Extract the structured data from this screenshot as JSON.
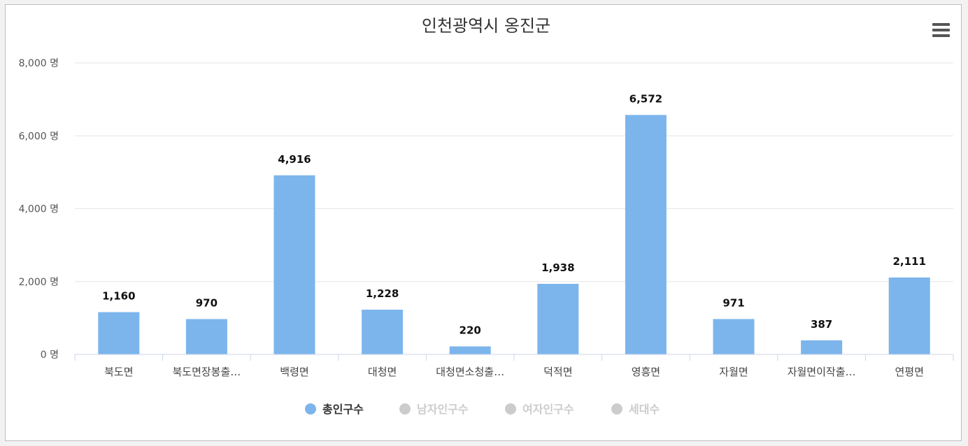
{
  "chart_data": {
    "type": "bar",
    "title": "인천광역시 옹진군",
    "categories": [
      "북도면",
      "북도면장봉출…",
      "백령면",
      "대청면",
      "대청면소청출…",
      "덕적면",
      "영흥면",
      "자월면",
      "자월면이작출…",
      "연평면"
    ],
    "series": [
      {
        "name": "총인구수",
        "values": [
          1160,
          970,
          4916,
          1228,
          220,
          1938,
          6572,
          971,
          387,
          2111
        ],
        "visible": true
      }
    ],
    "data_labels": [
      "1,160",
      "970",
      "4,916",
      "1,228",
      "220",
      "1,938",
      "6,572",
      "971",
      "387",
      "2,111"
    ],
    "ylim": [
      0,
      8000
    ],
    "yticks": [
      0,
      2000,
      4000,
      6000,
      8000
    ],
    "ytick_labels": [
      "0 명",
      "2,000 명",
      "4,000 명",
      "6,000 명",
      "8,000 명"
    ],
    "xlabel": "",
    "ylabel": "",
    "grid": true,
    "legend_position": "bottom-center",
    "legend": [
      {
        "name": "총인구수",
        "active": true
      },
      {
        "name": "남자인구수",
        "active": false
      },
      {
        "name": "여자인구수",
        "active": false
      },
      {
        "name": "세대수",
        "active": false
      }
    ],
    "colors": {
      "bar": "#7cb5ec",
      "grid": "#e6e6e6",
      "axis": "#ccd6eb",
      "legend_active_text": "#333333",
      "legend_inactive": "#cccccc"
    }
  },
  "menu_icon": "hamburger-menu-icon"
}
